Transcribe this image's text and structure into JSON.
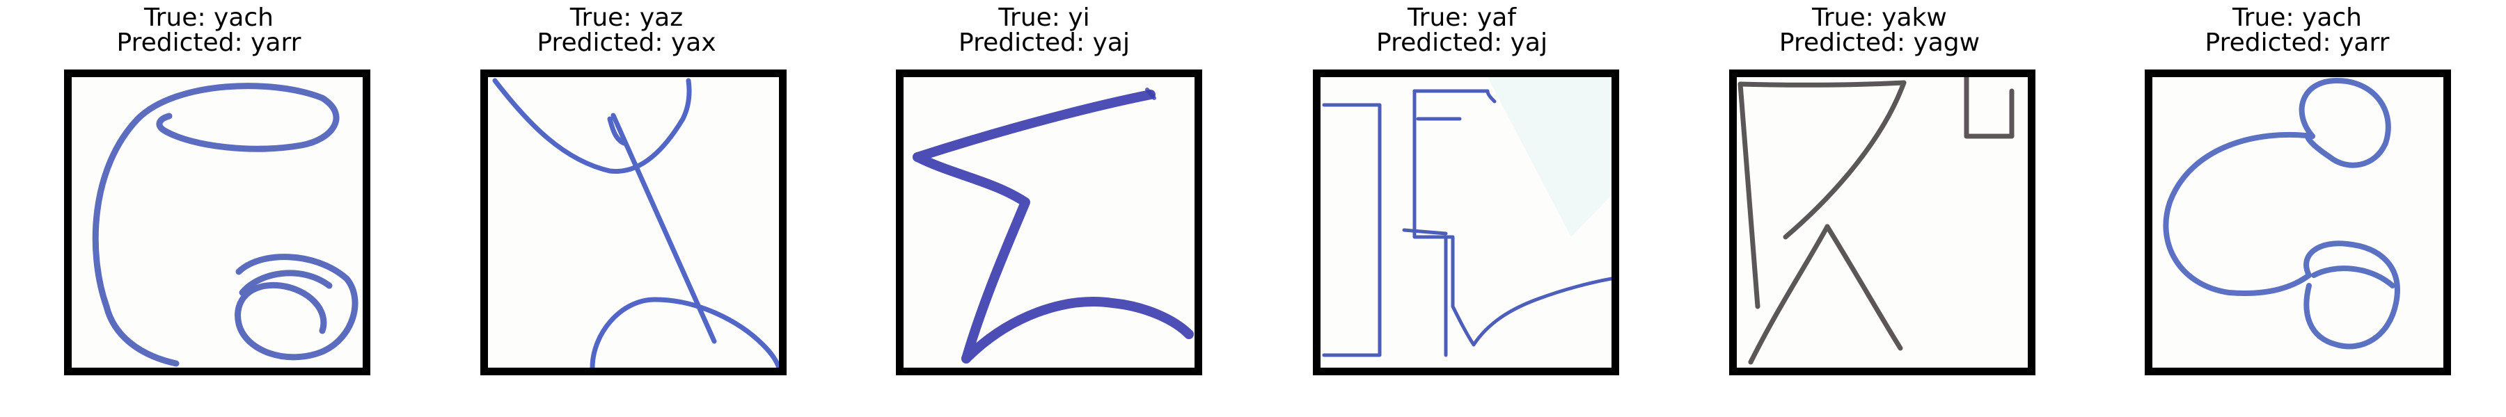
{
  "panels": [
    {
      "true_label": "True: yach",
      "pred_label": "Predicted: yarr",
      "ink": "#4a5cb8"
    },
    {
      "true_label": "True: yaz",
      "pred_label": "Predicted: yax",
      "ink": "#3f56c0"
    },
    {
      "true_label": "True: yi",
      "pred_label": "Predicted: yaj",
      "ink": "#3a3cae"
    },
    {
      "true_label": "True: yaf",
      "pred_label": "Predicted: yaj",
      "ink": "#3a4cb4"
    },
    {
      "true_label": "True: yakw",
      "pred_label": "Predicted: yagw",
      "ink": "#4a4446"
    },
    {
      "true_label": "True: yach",
      "pred_label": "Predicted: yarr",
      "ink": "#4a62bc"
    }
  ]
}
